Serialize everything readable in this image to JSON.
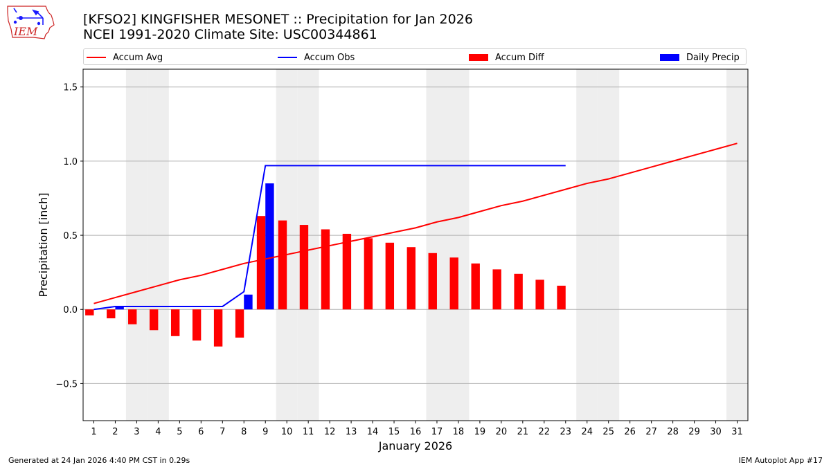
{
  "header": {
    "title_line1": "[KFSO2] KINGFISHER MESONET :: Precipitation for Jan 2026",
    "title_line2": "NCEI 1991-2020 Climate Site: USC00344861",
    "logo_text": "IEM"
  },
  "footer": {
    "generated": "Generated at 24 Jan 2026 4:40 PM CST in 0.29s",
    "app": "IEM Autoplot App #17"
  },
  "colors": {
    "accum_avg": "#ff0000",
    "accum_obs": "#0000ff",
    "accum_diff": "#ff0000",
    "daily_precip": "#0000ff",
    "weekend_shade": "#eeeeee",
    "grid": "#b0b0b0"
  },
  "chart_data": {
    "type": "bar",
    "xlabel": "January 2026",
    "ylabel": "Precipitation [inch]",
    "xlim": [
      0.5,
      31.5
    ],
    "ylim": [
      -0.75,
      1.62
    ],
    "yticks": [
      -0.5,
      0.0,
      0.5,
      1.0,
      1.5
    ],
    "ytick_labels": [
      "−0.5",
      "0.0",
      "0.5",
      "1.0",
      "1.5"
    ],
    "days": [
      1,
      2,
      3,
      4,
      5,
      6,
      7,
      8,
      9,
      10,
      11,
      12,
      13,
      14,
      15,
      16,
      17,
      18,
      19,
      20,
      21,
      22,
      23,
      24,
      25,
      26,
      27,
      28,
      29,
      30,
      31
    ],
    "weekend_days": [
      3,
      4,
      10,
      11,
      17,
      18,
      24,
      25,
      31
    ],
    "grid": "y",
    "legend_position": "top",
    "series": [
      {
        "name": "Accum Avg",
        "kind": "line",
        "x": [
          1,
          2,
          3,
          4,
          5,
          6,
          7,
          8,
          9,
          10,
          11,
          12,
          13,
          14,
          15,
          16,
          17,
          18,
          19,
          20,
          21,
          22,
          23,
          24,
          25,
          26,
          27,
          28,
          29,
          30,
          31
        ],
        "values": [
          0.04,
          0.08,
          0.12,
          0.16,
          0.2,
          0.23,
          0.27,
          0.31,
          0.34,
          0.37,
          0.4,
          0.43,
          0.46,
          0.49,
          0.52,
          0.55,
          0.59,
          0.62,
          0.66,
          0.7,
          0.73,
          0.77,
          0.81,
          0.85,
          0.88,
          0.92,
          0.96,
          1.0,
          1.04,
          1.08,
          1.12
        ]
      },
      {
        "name": "Accum Obs",
        "kind": "line",
        "x": [
          1,
          2,
          3,
          4,
          5,
          6,
          7,
          8,
          9,
          10,
          11,
          12,
          13,
          14,
          15,
          16,
          17,
          18,
          19,
          20,
          21,
          22,
          23
        ],
        "values": [
          0.0,
          0.02,
          0.02,
          0.02,
          0.02,
          0.02,
          0.02,
          0.12,
          0.97,
          0.97,
          0.97,
          0.97,
          0.97,
          0.97,
          0.97,
          0.97,
          0.97,
          0.97,
          0.97,
          0.97,
          0.97,
          0.97,
          0.97
        ]
      },
      {
        "name": "Accum Diff",
        "kind": "bar",
        "x": [
          1,
          2,
          3,
          4,
          5,
          6,
          7,
          8,
          9,
          10,
          11,
          12,
          13,
          14,
          15,
          16,
          17,
          18,
          19,
          20,
          21,
          22,
          23
        ],
        "values": [
          -0.04,
          -0.06,
          -0.1,
          -0.14,
          -0.18,
          -0.21,
          -0.25,
          -0.19,
          0.63,
          0.6,
          0.57,
          0.54,
          0.51,
          0.48,
          0.45,
          0.42,
          0.38,
          0.35,
          0.31,
          0.27,
          0.24,
          0.2,
          0.16
        ]
      },
      {
        "name": "Daily Precip",
        "kind": "bar",
        "x": [
          1,
          2,
          3,
          4,
          5,
          6,
          7,
          8,
          9,
          10,
          11,
          12,
          13,
          14,
          15,
          16,
          17,
          18,
          19,
          20,
          21,
          22,
          23
        ],
        "values": [
          0.0,
          0.02,
          0.0,
          0.0,
          0.0,
          0.0,
          0.0,
          0.1,
          0.85,
          0.0,
          0.0,
          0.0,
          0.0,
          0.0,
          0.0,
          0.0,
          0.0,
          0.0,
          0.0,
          0.0,
          0.0,
          0.0,
          0.0
        ]
      }
    ]
  }
}
